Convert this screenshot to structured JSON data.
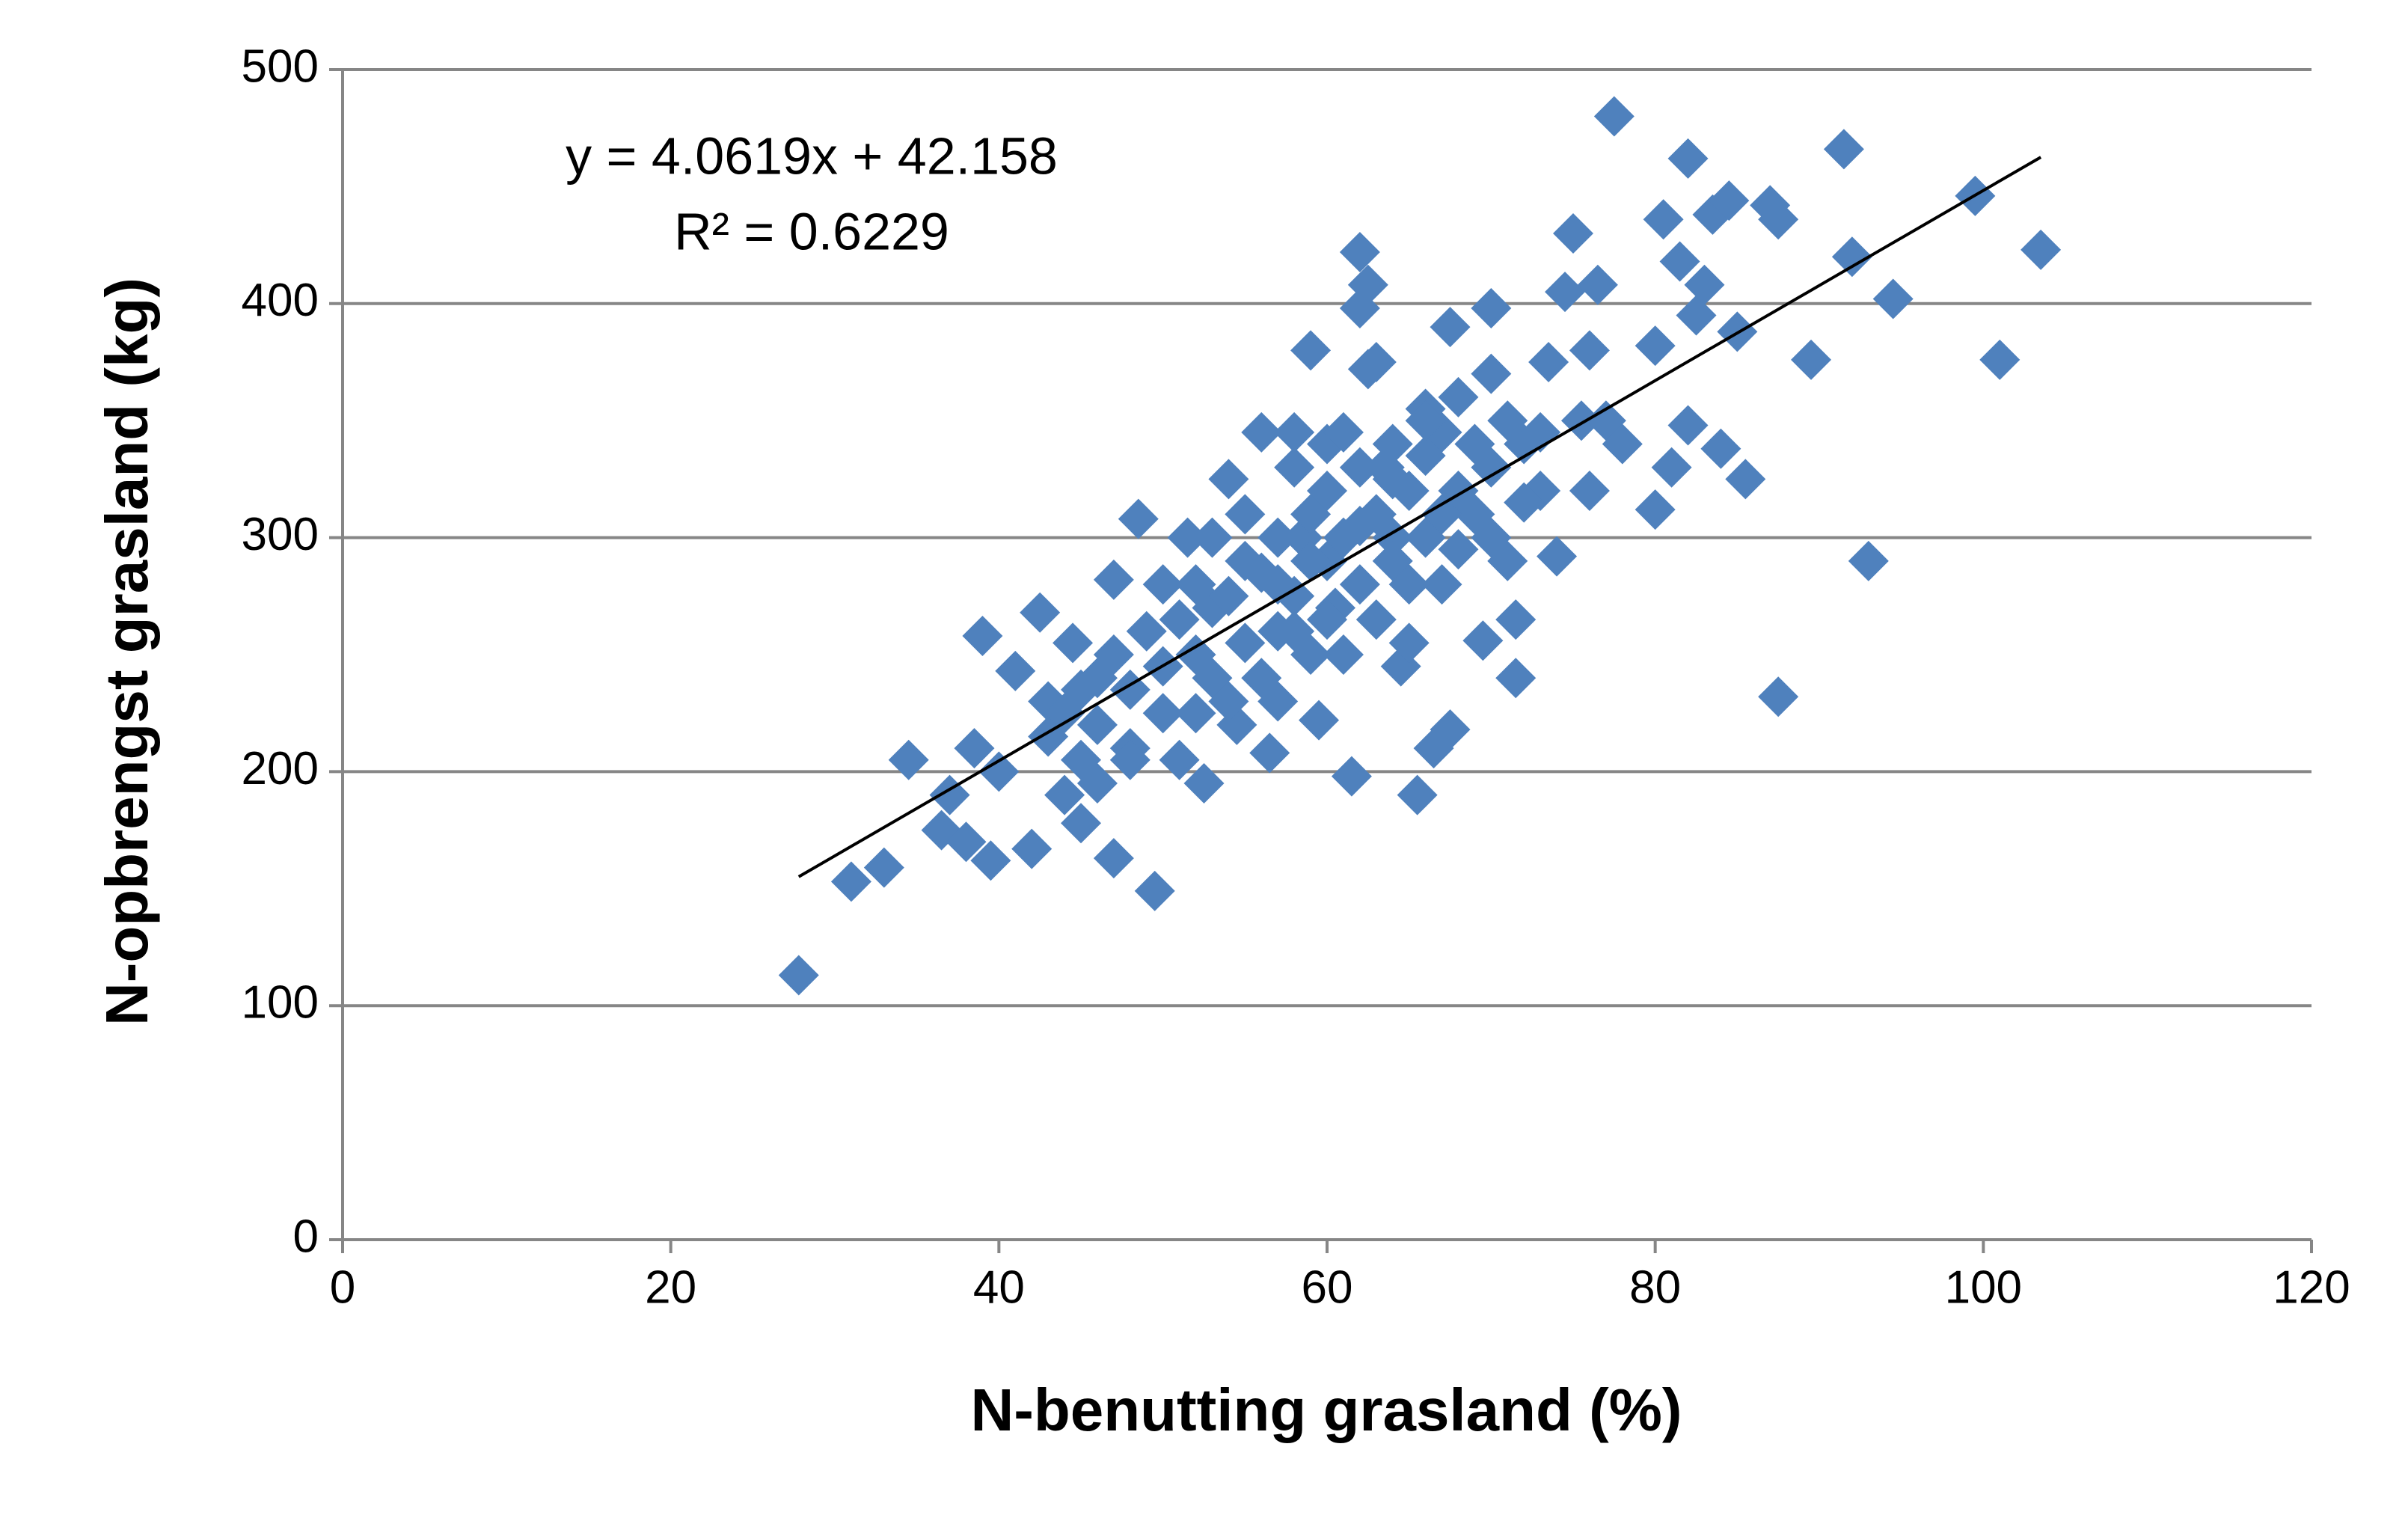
{
  "chart_data": {
    "type": "scatter",
    "xlabel": "N-benutting grasland (%)",
    "ylabel": "N-opbrengst grasland (kg)",
    "xlim": [
      0,
      120
    ],
    "xticks": [
      0,
      20,
      40,
      60,
      80,
      100,
      120
    ],
    "ylim": [
      0,
      500
    ],
    "yticks": [
      0,
      100,
      200,
      300,
      400,
      500
    ],
    "grid": true,
    "color": "#4f81bd",
    "trendline": {
      "label": "y = 4.0619x + 42.158",
      "r2_label": "R² = 0.6229",
      "slope": 4.0619,
      "intercept": 42.158,
      "color": "#000000"
    },
    "x": [
      27.8,
      31,
      33,
      34.5,
      36.5,
      37,
      38,
      38.5,
      39,
      39.5,
      40,
      41,
      42,
      42.5,
      43,
      44,
      44.5,
      45,
      46,
      47,
      47,
      48,
      48.5,
      49.5,
      50,
      51,
      51.5,
      52,
      52.5,
      53,
      54,
      54.5,
      55,
      56,
      56.5,
      57,
      58,
      58.5,
      59,
      59.5,
      60,
      60.5,
      61,
      61.5,
      62,
      62,
      62.5,
      62.5,
      63,
      63.5,
      64,
      64.5,
      65,
      65.5,
      66,
      66.5,
      67,
      67.5,
      67.5,
      68,
      69,
      69.5,
      70,
      70,
      71,
      71.5,
      71.5,
      72,
      73,
      73.5,
      74,
      74.5,
      75,
      75.5,
      76,
      76,
      76.5,
      77,
      77.5,
      78,
      80,
      80,
      80.5,
      81,
      81.5,
      82,
      82,
      82.5,
      83,
      83.5,
      84,
      84.5,
      85,
      85.5,
      87,
      87.5,
      87.5,
      89.5,
      91.5,
      92,
      93,
      94.5,
      99.5,
      101,
      103.5,
      43,
      44,
      45,
      46,
      47,
      48,
      49,
      50,
      51,
      52,
      53,
      54,
      55,
      56,
      57,
      57,
      58,
      59,
      59,
      60,
      60,
      61,
      62,
      62,
      63,
      64,
      64,
      65,
      66,
      66,
      67,
      68,
      69,
      70,
      70,
      71,
      72,
      73,
      55,
      53,
      50,
      48,
      46,
      45,
      58,
      61,
      65,
      68,
      63,
      56,
      54,
      52,
      67,
      60,
      58,
      66,
      64,
      62,
      59,
      57
    ],
    "y": [
      113,
      153,
      159,
      205,
      175,
      190,
      170,
      210,
      258,
      162,
      200,
      243,
      167,
      268,
      230,
      190,
      255,
      178,
      240,
      163,
      282,
      210,
      308,
      149,
      280,
      205,
      300,
      250,
      195,
      270,
      325,
      220,
      290,
      345,
      208,
      260,
      345,
      300,
      380,
      222,
      340,
      270,
      250,
      198,
      422,
      398,
      372,
      408,
      375,
      330,
      300,
      245,
      255,
      190,
      355,
      210,
      280,
      218,
      390,
      360,
      310,
      256,
      398,
      370,
      290,
      265,
      240,
      340,
      320,
      375,
      292,
      405,
      430,
      350,
      380,
      320,
      408,
      350,
      480,
      340,
      382,
      312,
      436,
      330,
      418,
      462,
      348,
      395,
      408,
      438,
      338,
      444,
      388,
      325,
      442,
      436,
      232,
      376,
      466,
      420,
      290,
      402,
      446,
      376,
      423,
      215,
      225,
      235,
      220,
      250,
      235,
      260,
      245,
      265,
      280,
      240,
      275,
      255,
      285,
      300,
      230,
      275,
      310,
      250,
      290,
      320,
      300,
      330,
      280,
      310,
      340,
      290,
      320,
      335,
      300,
      345,
      320,
      340,
      330,
      300,
      350,
      315,
      345,
      310,
      300,
      225,
      205,
      195,
      205,
      330,
      345,
      280,
      295,
      265,
      240,
      230,
      225,
      310,
      265,
      260,
      350,
      325,
      305,
      290,
      280
    ]
  }
}
